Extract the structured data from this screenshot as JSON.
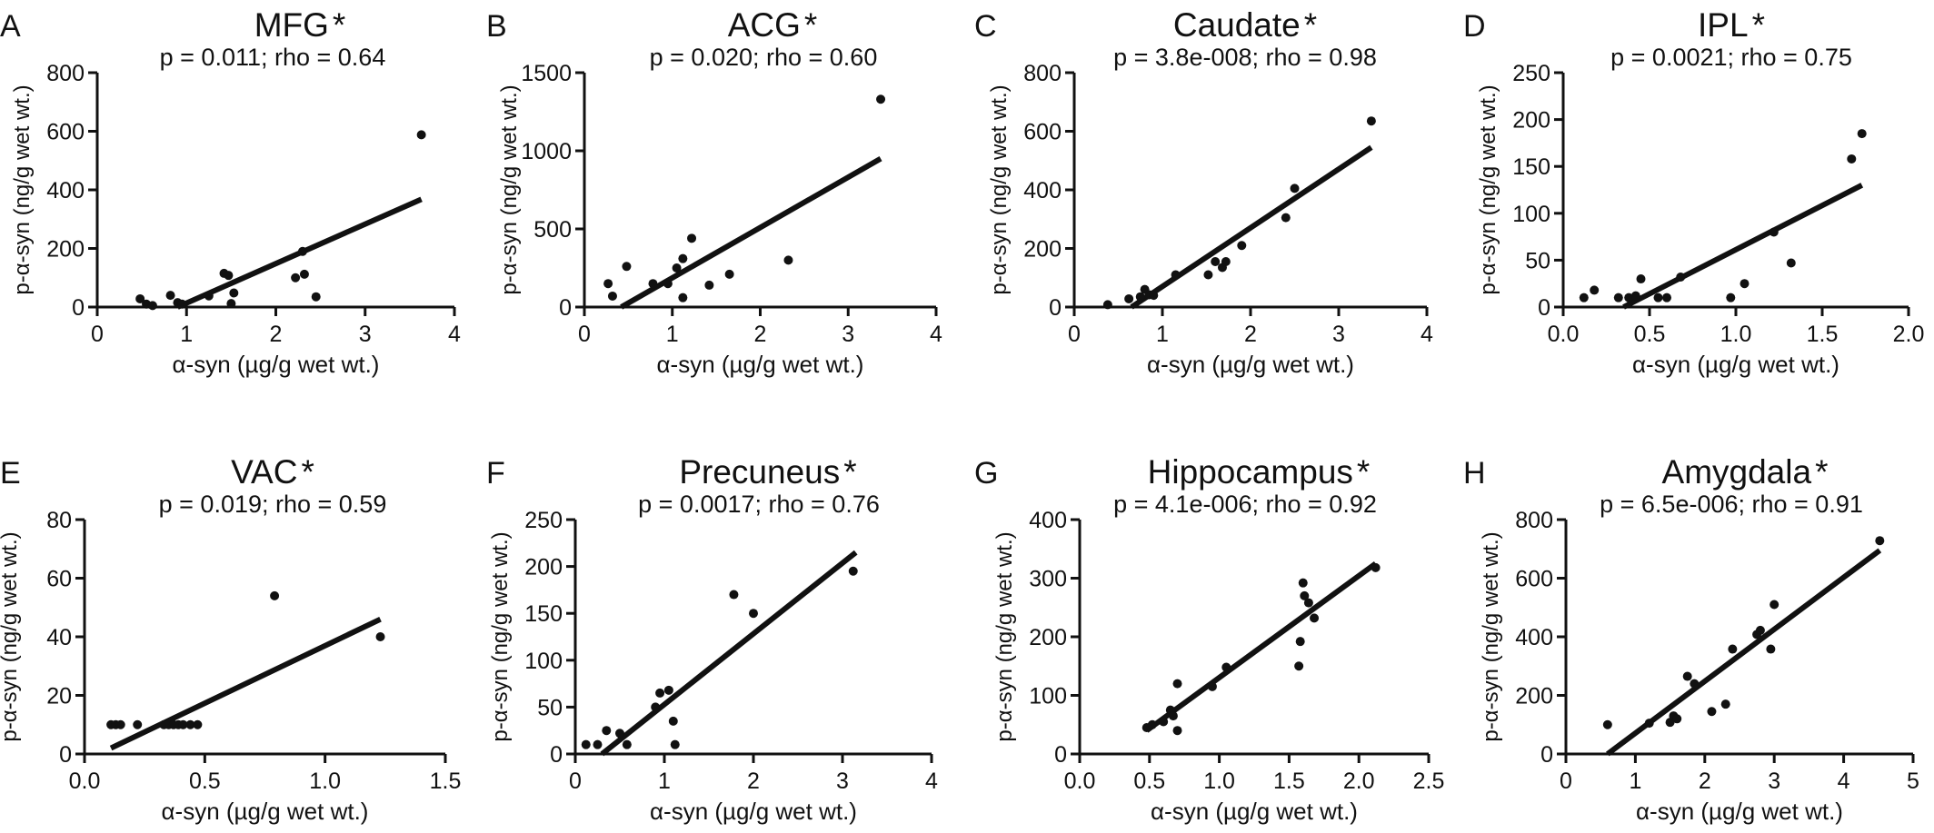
{
  "chart_data": [
    {
      "type": "scatter",
      "letter": "A",
      "title": "MFG",
      "star": "*",
      "stats": "p = 0.011; rho = 0.64",
      "xlabel": "α-syn (µg/g wet wt.)",
      "ylabel": "p-α-syn (ng/g wet wt.)",
      "xlim": [
        0,
        4
      ],
      "ylim": [
        0,
        800
      ],
      "xticks": [
        "0",
        "1",
        "2",
        "3",
        "4"
      ],
      "yticks": [
        "0",
        "200",
        "400",
        "600",
        "800"
      ],
      "points": [
        [
          0.48,
          28
        ],
        [
          0.55,
          10
        ],
        [
          0.62,
          5
        ],
        [
          0.82,
          40
        ],
        [
          0.9,
          15
        ],
        [
          0.95,
          10
        ],
        [
          1.25,
          38
        ],
        [
          1.42,
          115
        ],
        [
          1.47,
          108
        ],
        [
          1.53,
          48
        ],
        [
          1.5,
          12
        ],
        [
          2.22,
          100
        ],
        [
          2.3,
          190
        ],
        [
          2.32,
          112
        ],
        [
          2.45,
          35
        ],
        [
          3.63,
          588
        ]
      ],
      "fit": [
        [
          0.9,
          0
        ],
        [
          3.63,
          368
        ]
      ]
    },
    {
      "type": "scatter",
      "letter": "B",
      "title": "ACG",
      "star": "*",
      "stats": "p = 0.020; rho = 0.60",
      "xlabel": "α-syn (µg/g wet wt.)",
      "ylabel": "p-α-syn (ng/g wet wt.)",
      "xlim": [
        0,
        4
      ],
      "ylim": [
        0,
        1500
      ],
      "xticks": [
        "0",
        "1",
        "2",
        "3",
        "4"
      ],
      "yticks": [
        "0",
        "500",
        "1000",
        "1500"
      ],
      "points": [
        [
          0.27,
          150
        ],
        [
          0.32,
          70
        ],
        [
          0.48,
          260
        ],
        [
          0.78,
          150
        ],
        [
          0.95,
          150
        ],
        [
          1.05,
          250
        ],
        [
          1.12,
          310
        ],
        [
          1.12,
          60
        ],
        [
          1.22,
          440
        ],
        [
          1.42,
          140
        ],
        [
          1.65,
          210
        ],
        [
          2.32,
          300
        ],
        [
          3.37,
          1330
        ]
      ],
      "fit": [
        [
          0.42,
          0
        ],
        [
          3.37,
          950
        ]
      ]
    },
    {
      "type": "scatter",
      "letter": "C",
      "title": "Caudate",
      "star": "*",
      "stats": "p = 3.8e-008; rho = 0.98",
      "xlabel": "α-syn (µg/g wet wt.)",
      "ylabel": "p-α-syn (ng/g wet wt.)",
      "xlim": [
        0,
        4
      ],
      "ylim": [
        0,
        800
      ],
      "xticks": [
        "0",
        "1",
        "2",
        "3",
        "4"
      ],
      "yticks": [
        "0",
        "200",
        "400",
        "600",
        "800"
      ],
      "points": [
        [
          0.38,
          8
        ],
        [
          0.62,
          28
        ],
        [
          0.75,
          35
        ],
        [
          0.8,
          60
        ],
        [
          0.85,
          42
        ],
        [
          0.9,
          40
        ],
        [
          1.15,
          110
        ],
        [
          1.52,
          110
        ],
        [
          1.6,
          155
        ],
        [
          1.68,
          135
        ],
        [
          1.72,
          155
        ],
        [
          1.9,
          210
        ],
        [
          2.4,
          305
        ],
        [
          2.5,
          405
        ],
        [
          3.37,
          635
        ]
      ],
      "fit": [
        [
          0.65,
          0
        ],
        [
          3.37,
          545
        ]
      ]
    },
    {
      "type": "scatter",
      "letter": "D",
      "title": "IPL",
      "star": "*",
      "stats": "p = 0.0021; rho = 0.75",
      "xlabel": "α-syn (µg/g wet wt.)",
      "ylabel": "p-α-syn (ng/g wet wt.)",
      "xlim": [
        0,
        2
      ],
      "ylim": [
        0,
        250
      ],
      "xticks": [
        "0.0",
        "0.5",
        "1.0",
        "1.5",
        "2.0"
      ],
      "yticks": [
        "0",
        "50",
        "100",
        "150",
        "200",
        "250"
      ],
      "points": [
        [
          0.12,
          10
        ],
        [
          0.18,
          18
        ],
        [
          0.32,
          10
        ],
        [
          0.38,
          10
        ],
        [
          0.42,
          12
        ],
        [
          0.45,
          30
        ],
        [
          0.55,
          10
        ],
        [
          0.6,
          10
        ],
        [
          0.68,
          32
        ],
        [
          0.97,
          10
        ],
        [
          1.05,
          25
        ],
        [
          1.22,
          80
        ],
        [
          1.32,
          47
        ],
        [
          1.67,
          158
        ],
        [
          1.73,
          185
        ]
      ],
      "fit": [
        [
          0.35,
          0
        ],
        [
          1.73,
          130
        ]
      ]
    },
    {
      "type": "scatter",
      "letter": "E",
      "title": "VAC",
      "star": "*",
      "stats": "p = 0.019; rho = 0.59",
      "xlabel": "α-syn (µg/g wet wt.)",
      "ylabel": "p-α-syn (ng/g wet wt.)",
      "xlim": [
        0,
        1.5
      ],
      "ylim": [
        0,
        80
      ],
      "xticks": [
        "0.0",
        "0.5",
        "1.0",
        "1.5"
      ],
      "yticks": [
        "0",
        "20",
        "40",
        "60",
        "80"
      ],
      "points": [
        [
          0.11,
          10
        ],
        [
          0.13,
          10
        ],
        [
          0.15,
          10
        ],
        [
          0.22,
          10
        ],
        [
          0.33,
          10
        ],
        [
          0.35,
          10
        ],
        [
          0.37,
          10
        ],
        [
          0.39,
          10
        ],
        [
          0.41,
          10
        ],
        [
          0.44,
          10
        ],
        [
          0.47,
          10
        ],
        [
          0.79,
          54
        ],
        [
          1.23,
          40
        ]
      ],
      "fit": [
        [
          0.11,
          2
        ],
        [
          1.23,
          46
        ]
      ]
    },
    {
      "type": "scatter",
      "letter": "F",
      "title": "Precuneus",
      "star": "*",
      "stats": "p = 0.0017; rho = 0.76",
      "xlabel": "α-syn (µg/g wet wt.)",
      "ylabel": "p-α-syn (ng/g wet wt.)",
      "xlim": [
        0,
        4
      ],
      "ylim": [
        0,
        250
      ],
      "xticks": [
        "0",
        "1",
        "2",
        "3",
        "4"
      ],
      "yticks": [
        "0",
        "50",
        "100",
        "150",
        "200",
        "250"
      ],
      "points": [
        [
          0.12,
          10
        ],
        [
          0.25,
          10
        ],
        [
          0.35,
          25
        ],
        [
          0.5,
          22
        ],
        [
          0.58,
          10
        ],
        [
          0.9,
          50
        ],
        [
          0.95,
          65
        ],
        [
          1.05,
          68
        ],
        [
          1.1,
          35
        ],
        [
          1.12,
          10
        ],
        [
          1.78,
          170
        ],
        [
          2.0,
          150
        ],
        [
          3.12,
          195
        ]
      ],
      "fit": [
        [
          0.3,
          0
        ],
        [
          3.15,
          215
        ]
      ]
    },
    {
      "type": "scatter",
      "letter": "G",
      "title": "Hippocampus",
      "star": "*",
      "stats": "p = 4.1e-006; rho = 0.92",
      "xlabel": "α-syn (µg/g wet wt.)",
      "ylabel": "p-α-syn (ng/g wet wt.)",
      "xlim": [
        0,
        2.5
      ],
      "ylim": [
        0,
        400
      ],
      "xticks": [
        "0.0",
        "0.5",
        "1.0",
        "1.5",
        "2.0",
        "2.5"
      ],
      "yticks": [
        "0",
        "100",
        "200",
        "300",
        "400"
      ],
      "points": [
        [
          0.48,
          45
        ],
        [
          0.52,
          50
        ],
        [
          0.6,
          55
        ],
        [
          0.65,
          75
        ],
        [
          0.67,
          65
        ],
        [
          0.7,
          40
        ],
        [
          0.7,
          120
        ],
        [
          0.95,
          115
        ],
        [
          1.05,
          148
        ],
        [
          1.57,
          150
        ],
        [
          1.58,
          192
        ],
        [
          1.6,
          292
        ],
        [
          1.61,
          270
        ],
        [
          1.64,
          258
        ],
        [
          1.68,
          232
        ],
        [
          2.12,
          318
        ]
      ],
      "fit": [
        [
          0.48,
          40
        ],
        [
          2.12,
          325
        ]
      ]
    },
    {
      "type": "scatter",
      "letter": "H",
      "title": "Amygdala",
      "star": "*",
      "stats": "p = 6.5e-006; rho = 0.91",
      "xlabel": "α-syn (µg/g wet wt.)",
      "ylabel": "p-α-syn (ng/g wet wt.)",
      "xlim": [
        0,
        5
      ],
      "ylim": [
        0,
        800
      ],
      "xticks": [
        "0",
        "1",
        "2",
        "3",
        "4",
        "5"
      ],
      "yticks": [
        "0",
        "200",
        "400",
        "600",
        "800"
      ],
      "points": [
        [
          0.6,
          100
        ],
        [
          1.2,
          105
        ],
        [
          1.5,
          108
        ],
        [
          1.55,
          130
        ],
        [
          1.6,
          120
        ],
        [
          1.75,
          265
        ],
        [
          1.85,
          240
        ],
        [
          2.1,
          145
        ],
        [
          2.3,
          170
        ],
        [
          2.4,
          358
        ],
        [
          2.75,
          408
        ],
        [
          2.8,
          422
        ],
        [
          2.95,
          358
        ],
        [
          3.0,
          510
        ],
        [
          4.52,
          728
        ]
      ],
      "fit": [
        [
          0.6,
          0
        ],
        [
          4.52,
          695
        ]
      ]
    }
  ]
}
